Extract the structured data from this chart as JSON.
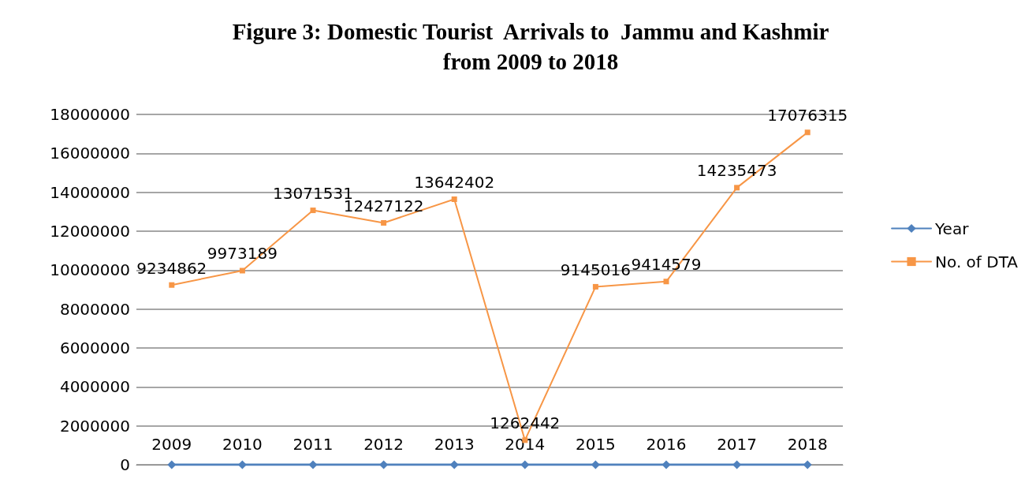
{
  "chart_data": {
    "type": "line",
    "title": "Figure 3: Domestic Tourist  Arrivals to  Jammu and Kashmir\nfrom 2009 to 2018",
    "categories": [
      null,
      null,
      null,
      null,
      null,
      null,
      null,
      null,
      null,
      null
    ],
    "series": [
      {
        "name": "Year",
        "color": "#4f81bd",
        "marker": "diamond",
        "values": [
          2009,
          2010,
          2011,
          2012,
          2013,
          2014,
          2015,
          2016,
          2017,
          2018
        ]
      },
      {
        "name": "No. of DTA",
        "color": "#f79646",
        "marker": "square",
        "values": [
          9234862,
          9973189,
          13071531,
          12427122,
          13642402,
          1262442,
          9145016,
          9414579,
          14235473,
          17076315
        ]
      }
    ],
    "ylim": [
      0,
      18000000
    ],
    "yticks": [
      0,
      2000000,
      4000000,
      6000000,
      8000000,
      10000000,
      12000000,
      14000000,
      16000000,
      18000000
    ],
    "grid": "y",
    "legend": "right",
    "data_labels": true
  }
}
